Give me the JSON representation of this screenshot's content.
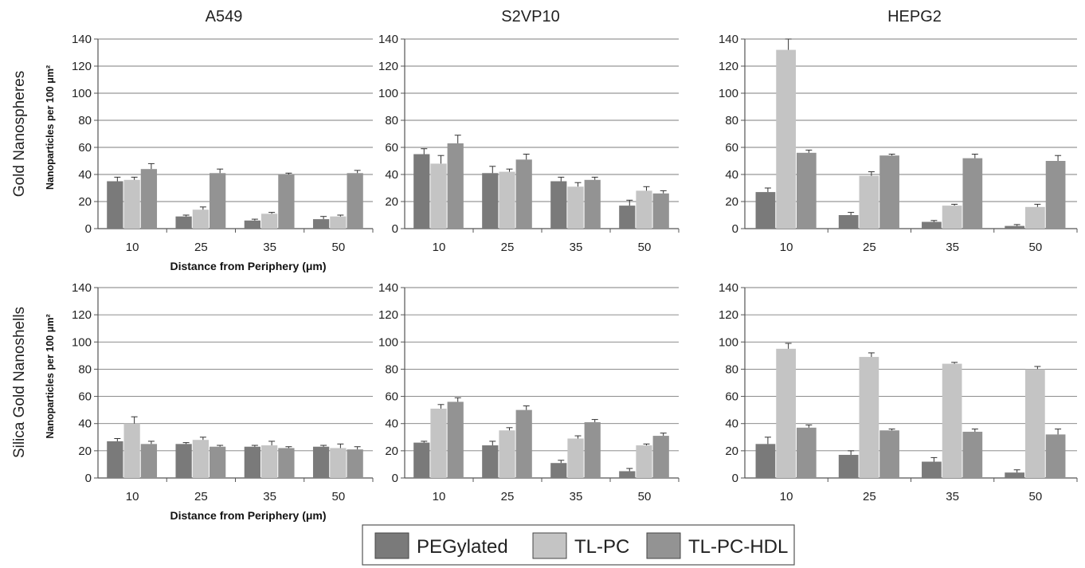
{
  "figure": {
    "columns": [
      "A549",
      "S2VP10",
      "HEPG2"
    ],
    "rows": [
      "Gold Nanospheres",
      "Silica Gold Nanoshells"
    ]
  },
  "legend": {
    "items": [
      {
        "label": "PEGylated",
        "color": "#7a7a7a"
      },
      {
        "label": "TL-PC",
        "color": "#c4c4c4"
      },
      {
        "label": "TL-PC-HDL",
        "color": "#939393"
      }
    ]
  },
  "chart_data": [
    {
      "type": "bar",
      "title": "A549",
      "row": "Gold Nanospheres",
      "ylabel": "Nanoparticles per 100 μm²",
      "xlabel": "Distance from Periphery (μm)",
      "categories": [
        "10",
        "25",
        "35",
        "50"
      ],
      "ylim": [
        0,
        140
      ],
      "yticks": [
        0,
        20,
        40,
        60,
        80,
        100,
        120,
        140
      ],
      "grid": true,
      "series": [
        {
          "name": "PEGylated",
          "values": [
            35,
            9,
            6,
            7
          ],
          "errors": [
            3,
            1,
            1,
            2
          ]
        },
        {
          "name": "TL-PC",
          "values": [
            36,
            14,
            11,
            9
          ],
          "errors": [
            2,
            2,
            1,
            1
          ]
        },
        {
          "name": "TL-PC-HDL",
          "values": [
            44,
            41,
            40,
            41
          ],
          "errors": [
            4,
            3,
            1,
            2
          ]
        }
      ]
    },
    {
      "type": "bar",
      "title": "S2VP10",
      "row": "Gold Nanospheres",
      "ylabel": "",
      "xlabel": "",
      "categories": [
        "10",
        "25",
        "35",
        "50"
      ],
      "ylim": [
        0,
        140
      ],
      "yticks": [
        0,
        20,
        40,
        60,
        80,
        100,
        120,
        140
      ],
      "grid": true,
      "series": [
        {
          "name": "PEGylated",
          "values": [
            55,
            41,
            35,
            17
          ],
          "errors": [
            4,
            5,
            3,
            4
          ]
        },
        {
          "name": "TL-PC",
          "values": [
            48,
            42,
            31,
            28
          ],
          "errors": [
            6,
            2,
            3,
            3
          ]
        },
        {
          "name": "TL-PC-HDL",
          "values": [
            63,
            51,
            36,
            26
          ],
          "errors": [
            6,
            4,
            2,
            2
          ]
        }
      ]
    },
    {
      "type": "bar",
      "title": "HEPG2",
      "row": "Gold Nanospheres",
      "ylabel": "",
      "xlabel": "",
      "categories": [
        "10",
        "25",
        "35",
        "50"
      ],
      "ylim": [
        0,
        140
      ],
      "yticks": [
        0,
        20,
        40,
        60,
        80,
        100,
        120,
        140
      ],
      "grid": true,
      "series": [
        {
          "name": "PEGylated",
          "values": [
            27,
            10,
            5,
            2
          ],
          "errors": [
            3,
            2,
            1,
            1
          ]
        },
        {
          "name": "TL-PC",
          "values": [
            132,
            39,
            17,
            16
          ],
          "errors": [
            8,
            3,
            1,
            2
          ]
        },
        {
          "name": "TL-PC-HDL",
          "values": [
            56,
            54,
            52,
            50
          ],
          "errors": [
            2,
            1,
            3,
            4
          ]
        }
      ]
    },
    {
      "type": "bar",
      "title": "A549",
      "row": "Silica Gold Nanoshells",
      "ylabel": "Nanoparticles per 100 μm²",
      "xlabel": "Distance from Periphery (μm)",
      "categories": [
        "10",
        "25",
        "35",
        "50"
      ],
      "ylim": [
        0,
        140
      ],
      "yticks": [
        0,
        20,
        40,
        60,
        80,
        100,
        120,
        140
      ],
      "grid": true,
      "series": [
        {
          "name": "PEGylated",
          "values": [
            27,
            25,
            23,
            23
          ],
          "errors": [
            2,
            1,
            1,
            1
          ]
        },
        {
          "name": "TL-PC",
          "values": [
            40,
            28,
            24,
            22
          ],
          "errors": [
            5,
            2,
            3,
            3
          ]
        },
        {
          "name": "TL-PC-HDL",
          "values": [
            25,
            23,
            22,
            21
          ],
          "errors": [
            2,
            1,
            1,
            2
          ]
        }
      ]
    },
    {
      "type": "bar",
      "title": "S2VP10",
      "row": "Silica Gold Nanoshells",
      "ylabel": "",
      "xlabel": "",
      "categories": [
        "10",
        "25",
        "35",
        "50"
      ],
      "ylim": [
        0,
        140
      ],
      "yticks": [
        0,
        20,
        40,
        60,
        80,
        100,
        120,
        140
      ],
      "grid": true,
      "series": [
        {
          "name": "PEGylated",
          "values": [
            26,
            24,
            11,
            5
          ],
          "errors": [
            1,
            3,
            2,
            2
          ]
        },
        {
          "name": "TL-PC",
          "values": [
            51,
            35,
            29,
            24
          ],
          "errors": [
            3,
            2,
            2,
            1
          ]
        },
        {
          "name": "TL-PC-HDL",
          "values": [
            56,
            50,
            41,
            31
          ],
          "errors": [
            3,
            3,
            2,
            2
          ]
        }
      ]
    },
    {
      "type": "bar",
      "title": "HEPG2",
      "row": "Silica Gold Nanoshells",
      "ylabel": "",
      "xlabel": "",
      "categories": [
        "10",
        "25",
        "35",
        "50"
      ],
      "ylim": [
        0,
        140
      ],
      "yticks": [
        0,
        20,
        40,
        60,
        80,
        100,
        120,
        140
      ],
      "grid": true,
      "series": [
        {
          "name": "PEGylated",
          "values": [
            25,
            17,
            12,
            4
          ],
          "errors": [
            5,
            3,
            3,
            2
          ]
        },
        {
          "name": "TL-PC",
          "values": [
            95,
            89,
            84,
            80
          ],
          "errors": [
            4,
            3,
            1,
            2
          ]
        },
        {
          "name": "TL-PC-HDL",
          "values": [
            37,
            35,
            34,
            32
          ],
          "errors": [
            2,
            1,
            2,
            4
          ]
        }
      ]
    }
  ]
}
